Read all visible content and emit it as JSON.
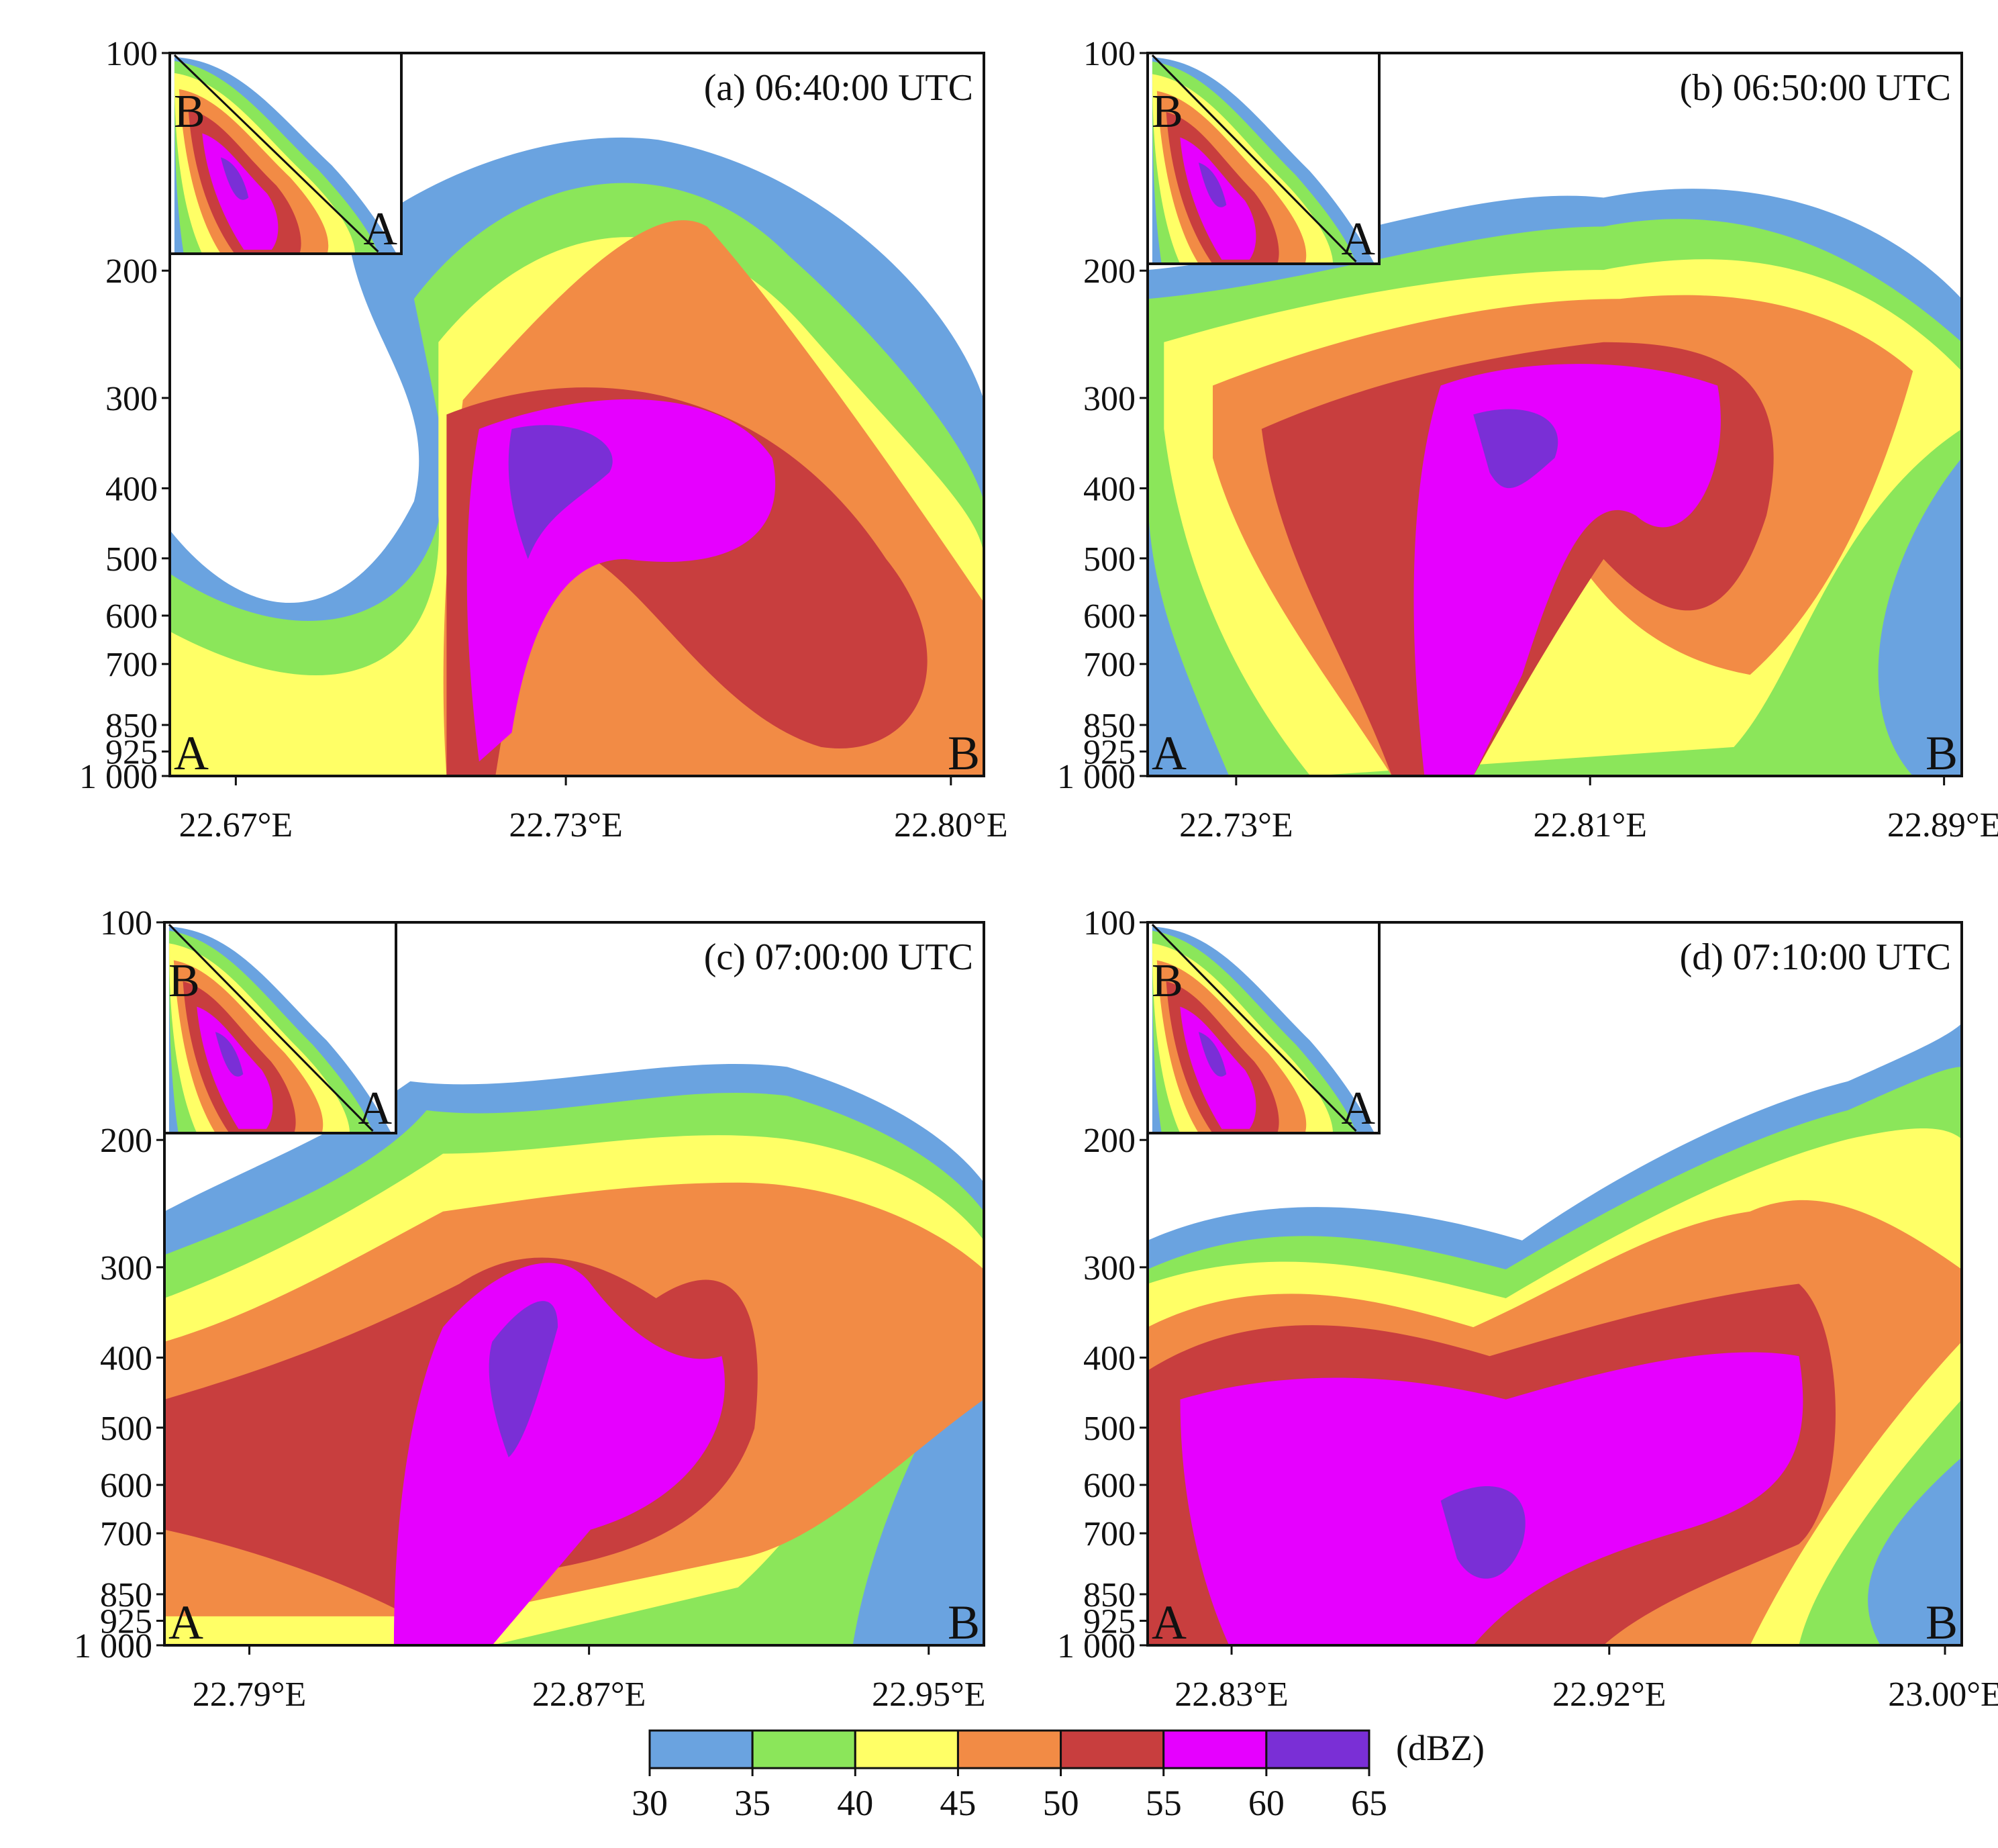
{
  "chart_data": {
    "type": "heatmap",
    "colorbar": {
      "unit": "(dBZ)",
      "bounds": [
        30,
        35,
        40,
        45,
        50,
        55,
        60,
        65
      ],
      "colors": [
        "#6aa3e0",
        "#8be65a",
        "#ffff66",
        "#f28b45",
        "#c83e3e",
        "#e600ff",
        "#7a2fd6"
      ]
    },
    "y_ticks": [
      "100",
      "200",
      "300",
      "400",
      "500",
      "600",
      "700",
      "850",
      "925",
      "1 000"
    ],
    "y_values": [
      100,
      200,
      300,
      400,
      500,
      600,
      700,
      850,
      925,
      1000
    ],
    "panels": [
      {
        "title": "(a) 06:40:00 UTC",
        "x_ticks": [
          "22.67°E",
          "22.73°E",
          "22.80°E"
        ],
        "x_values": [
          22.67,
          22.73,
          22.8
        ],
        "xlim": [
          22.658,
          22.806
        ],
        "ylim": [
          1000,
          100
        ],
        "end_left": "A",
        "end_right": "B",
        "inset": {
          "label_b": "B",
          "label_a": "A"
        }
      },
      {
        "title": "(b) 06:50:00 UTC",
        "x_ticks": [
          "22.73°E",
          "22.81°E",
          "22.89°E"
        ],
        "x_values": [
          22.73,
          22.81,
          22.89
        ],
        "xlim": [
          22.71,
          22.894
        ],
        "ylim": [
          1000,
          100
        ],
        "end_left": "A",
        "end_right": "B",
        "inset": {
          "label_b": "B",
          "label_a": "A"
        }
      },
      {
        "title": "(c) 07:00:00 UTC",
        "x_ticks": [
          "22.79°E",
          "22.87°E",
          "22.95°E"
        ],
        "x_values": [
          22.79,
          22.87,
          22.95
        ],
        "xlim": [
          22.77,
          22.963
        ],
        "ylim": [
          1000,
          100
        ],
        "end_left": "A",
        "end_right": "B",
        "inset": {
          "label_b": "B",
          "label_a": "A"
        }
      },
      {
        "title": "(d) 07:10:00 UTC",
        "x_ticks": [
          "22.83°E",
          "22.92°E",
          "23.00°E"
        ],
        "x_values": [
          22.83,
          22.92,
          23.0
        ],
        "xlim": [
          22.81,
          23.004
        ],
        "ylim": [
          1000,
          100
        ],
        "end_left": "A",
        "end_right": "B",
        "inset": {
          "label_b": "B",
          "label_a": "A"
        }
      }
    ]
  }
}
